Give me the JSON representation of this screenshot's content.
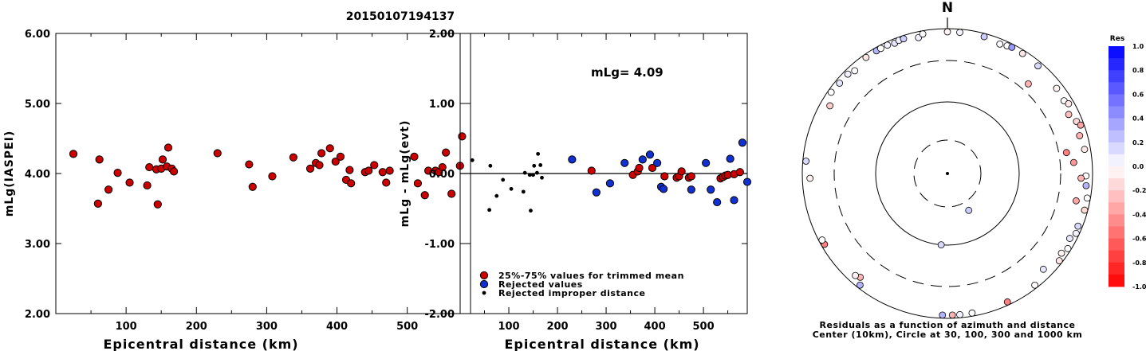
{
  "title": "20150107194137",
  "chart_data": [
    {
      "type": "scatter",
      "xlabel": "Epicentral distance (km)",
      "ylabel": "mLg(IASPEI)",
      "xlim": [
        0,
        590
      ],
      "ylim": [
        2.0,
        6.0
      ],
      "xticks": [
        "100",
        "200",
        "300",
        "400",
        "500"
      ],
      "yticks": [
        "2.00",
        "3.00",
        "4.00",
        "5.00",
        "6.00"
      ],
      "series": [
        {
          "color": "#cc0000",
          "points": [
            [
              25,
              4.28
            ],
            [
              60,
              3.57
            ],
            [
              62,
              4.2
            ],
            [
              75,
              3.77
            ],
            [
              88,
              4.01
            ],
            [
              105,
              3.87
            ],
            [
              130,
              3.83
            ],
            [
              133,
              4.09
            ],
            [
              143,
              4.06
            ],
            [
              145,
              3.56
            ],
            [
              150,
              4.07
            ],
            [
              152,
              4.2
            ],
            [
              158,
              4.1
            ],
            [
              160,
              4.37
            ],
            [
              165,
              4.07
            ],
            [
              168,
              4.03
            ],
            [
              230,
              4.29
            ],
            [
              275,
              4.13
            ],
            [
              280,
              3.81
            ],
            [
              308,
              3.96
            ],
            [
              338,
              4.23
            ],
            [
              362,
              4.07
            ],
            [
              370,
              4.15
            ],
            [
              375,
              4.12
            ],
            [
              378,
              4.29
            ],
            [
              390,
              4.36
            ],
            [
              398,
              4.17
            ],
            [
              405,
              4.24
            ],
            [
              413,
              3.91
            ],
            [
              418,
              4.05
            ],
            [
              420,
              3.86
            ],
            [
              440,
              4.02
            ],
            [
              445,
              4.04
            ],
            [
              453,
              4.12
            ],
            [
              465,
              4.02
            ],
            [
              470,
              3.87
            ],
            [
              475,
              4.04
            ],
            [
              510,
              4.24
            ],
            [
              515,
              3.86
            ],
            [
              525,
              3.69
            ],
            [
              530,
              4.04
            ],
            [
              540,
              4.04
            ],
            [
              545,
              4.02
            ],
            [
              550,
              4.09
            ],
            [
              555,
              4.3
            ],
            [
              563,
              3.71
            ],
            [
              575,
              4.11
            ],
            [
              578,
              4.53
            ]
          ]
        }
      ]
    },
    {
      "type": "scatter",
      "xlabel": "Epicentral distance (km)",
      "ylabel": "mLg - mLg(evt)",
      "xlim": [
        0,
        590
      ],
      "ylim": [
        -2.0,
        2.0
      ],
      "xticks": [
        "100",
        "200",
        "300",
        "400",
        "500"
      ],
      "yticks": [
        "-2.00",
        "-1.00",
        "0.00",
        "1.00",
        "2.00"
      ],
      "annotation": "mLg= 4.09",
      "legend": [
        {
          "label": "25%-75% values for trimmed mean",
          "color": "#cc0000"
        },
        {
          "label": "Rejected values",
          "color": "#1030d0"
        },
        {
          "label": "Rejected improper distance",
          "color": "#000000"
        }
      ],
      "series": [
        {
          "name": "25%-75% values for trimmed mean",
          "color": "#cc0000",
          "points": [
            [
              270,
              0.04
            ],
            [
              355,
              -0.02
            ],
            [
              365,
              0.03
            ],
            [
              368,
              0.08
            ],
            [
              395,
              0.08
            ],
            [
              420,
              -0.04
            ],
            [
              445,
              -0.06
            ],
            [
              450,
              -0.04
            ],
            [
              455,
              0.03
            ],
            [
              470,
              -0.06
            ],
            [
              475,
              -0.04
            ],
            [
              535,
              -0.07
            ],
            [
              540,
              -0.05
            ],
            [
              545,
              -0.03
            ],
            [
              550,
              -0.02
            ],
            [
              563,
              -0.01
            ],
            [
              575,
              0.02
            ]
          ]
        },
        {
          "name": "Rejected values",
          "color": "#1030d0",
          "points": [
            [
              230,
              0.2
            ],
            [
              280,
              -0.27
            ],
            [
              308,
              -0.14
            ],
            [
              338,
              0.15
            ],
            [
              375,
              0.2
            ],
            [
              390,
              0.27
            ],
            [
              405,
              0.15
            ],
            [
              413,
              -0.19
            ],
            [
              418,
              -0.22
            ],
            [
              475,
              -0.23
            ],
            [
              505,
              0.15
            ],
            [
              515,
              -0.23
            ],
            [
              528,
              -0.41
            ],
            [
              555,
              0.21
            ],
            [
              563,
              -0.38
            ],
            [
              580,
              0.44
            ],
            [
              590,
              -0.12
            ]
          ]
        },
        {
          "name": "Rejected improper distance",
          "color": "#000000",
          "points": [
            [
              25,
              0.19
            ],
            [
              60,
              -0.52
            ],
            [
              62,
              0.11
            ],
            [
              75,
              -0.32
            ],
            [
              88,
              -0.09
            ],
            [
              105,
              -0.22
            ],
            [
              130,
              -0.26
            ],
            [
              133,
              0.01
            ],
            [
              143,
              -0.02
            ],
            [
              145,
              -0.53
            ],
            [
              150,
              -0.02
            ],
            [
              152,
              0.11
            ],
            [
              158,
              0.01
            ],
            [
              160,
              0.28
            ],
            [
              165,
              0.12
            ],
            [
              168,
              -0.06
            ]
          ]
        }
      ]
    },
    {
      "type": "scatter",
      "subtype": "polar",
      "north_label": "N",
      "caption": [
        "Residuals as a function of azimuth and distance",
        "Center (10km), Circle at 30, 100, 300 and 1000 km"
      ],
      "colorbar": {
        "title": "Res",
        "ticks": [
          "1.0",
          "0.8",
          "0.6",
          "0.4",
          "0.2",
          "0.0",
          "-0.2",
          "-0.4",
          "-0.6",
          "-0.8",
          "-1.0"
        ],
        "high_color": "#0000ff",
        "low_color": "#ff0000"
      },
      "stations": [
        {
          "az": 0,
          "dist": 1100,
          "res": -0.05
        },
        {
          "az": 5,
          "dist": 1000,
          "res": 0.05
        },
        {
          "az": 15,
          "dist": 900,
          "res": 0.2
        },
        {
          "az": 22,
          "dist": 820,
          "res": 0.02
        },
        {
          "az": 25,
          "dist": 860,
          "res": 0.0
        },
        {
          "az": 27,
          "dist": 900,
          "res": 0.4
        },
        {
          "az": 32,
          "dist": 880,
          "res": -0.1
        },
        {
          "az": 40,
          "dist": 850,
          "res": 0.15
        },
        {
          "az": 42,
          "dist": 400,
          "res": -0.3
        },
        {
          "az": 52,
          "dist": 780,
          "res": -0.05
        },
        {
          "az": 58,
          "dist": 750,
          "res": 0.02
        },
        {
          "az": 60,
          "dist": 820,
          "res": -0.1
        },
        {
          "az": 64,
          "dist": 680,
          "res": -0.25
        },
        {
          "az": 68,
          "dist": 800,
          "res": -0.15
        },
        {
          "az": 70,
          "dist": 880,
          "res": -0.35
        },
        {
          "az": 74,
          "dist": 750,
          "res": -0.3
        },
        {
          "az": 80,
          "dist": 800,
          "res": -0.1
        },
        {
          "az": 80,
          "dist": 400,
          "res": -0.5
        },
        {
          "az": 85,
          "dist": 500,
          "res": -0.4
        },
        {
          "az": 91,
          "dist": 780,
          "res": 0.0
        },
        {
          "az": 92,
          "dist": 650,
          "res": -0.3
        },
        {
          "az": 95,
          "dist": 800,
          "res": 0.3
        },
        {
          "az": 100,
          "dist": 900,
          "res": 0.0
        },
        {
          "az": 102,
          "dist": 600,
          "res": -0.35
        },
        {
          "az": 105,
          "dist": 1000,
          "res": -0.15
        },
        {
          "az": 112,
          "dist": 850,
          "res": 0.15
        },
        {
          "az": 115,
          "dist": 920,
          "res": 0.05
        },
        {
          "az": 118,
          "dist": 780,
          "res": 0.1
        },
        {
          "az": 122,
          "dist": 900,
          "res": 0.0
        },
        {
          "az": 125,
          "dist": 800,
          "res": -0.05
        },
        {
          "az": 128,
          "dist": 1000,
          "res": -0.1
        },
        {
          "az": 135,
          "dist": 700,
          "res": 0.1
        },
        {
          "az": 142,
          "dist": 900,
          "res": -0.02
        },
        {
          "az": 150,
          "dist": 40,
          "res": 0.2
        },
        {
          "az": 155,
          "dist": 950,
          "res": -0.5
        },
        {
          "az": 170,
          "dist": 950,
          "res": 0.0
        },
        {
          "az": 175,
          "dist": 1100,
          "res": 0.05
        },
        {
          "az": 178,
          "dist": 1050,
          "res": -0.3
        },
        {
          "az": 182,
          "dist": 1200,
          "res": 0.3
        },
        {
          "az": 185,
          "dist": 100,
          "res": 0.15
        },
        {
          "az": 218,
          "dist": 1000,
          "res": 0.3
        },
        {
          "az": 220,
          "dist": 700,
          "res": -0.3
        },
        {
          "az": 222,
          "dist": 750,
          "res": -0.05
        },
        {
          "az": 240,
          "dist": 1000,
          "res": -0.5
        },
        {
          "az": 242,
          "dist": 1100,
          "res": 0.0
        },
        {
          "az": 268,
          "dist": 750,
          "res": -0.05
        },
        {
          "az": 275,
          "dist": 1100,
          "res": 0.15
        },
        {
          "az": 300,
          "dist": 700,
          "res": -0.2
        },
        {
          "az": 305,
          "dist": 1000,
          "res": 0.0
        },
        {
          "az": 310,
          "dist": 850,
          "res": 0.1
        },
        {
          "az": 315,
          "dist": 850,
          "res": 0.05
        },
        {
          "az": 318,
          "dist": 780,
          "res": 0.0
        },
        {
          "az": 325,
          "dist": 1050,
          "res": -0.1
        },
        {
          "az": 330,
          "dist": 1050,
          "res": 0.3
        },
        {
          "az": 332,
          "dist": 1000,
          "res": 0.0
        },
        {
          "az": 335,
          "dist": 900,
          "res": 0.05
        },
        {
          "az": 338,
          "dist": 850,
          "res": 0.1
        },
        {
          "az": 340,
          "dist": 1000,
          "res": 0.05
        },
        {
          "az": 342,
          "dist": 900,
          "res": 0.2
        },
        {
          "az": 348,
          "dist": 800,
          "res": 0.05
        },
        {
          "az": 350,
          "dist": 900,
          "res": 0.0
        }
      ]
    }
  ]
}
